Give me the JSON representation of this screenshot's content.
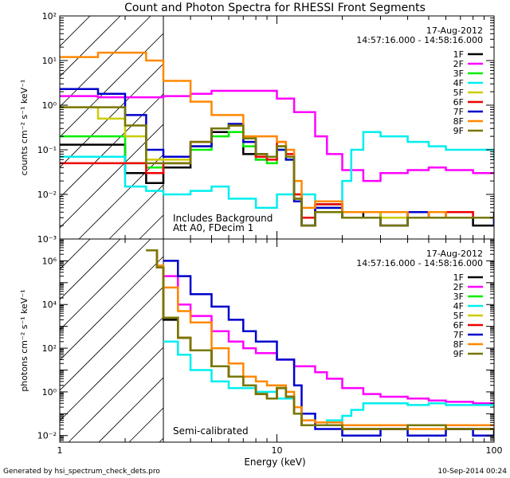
{
  "chart_data": [
    {
      "type": "line",
      "title": "Count and Photon Spectra for RHESSI Front Segments",
      "xlabel": "",
      "ylabel": "counts cm⁻² s⁻¹ keV⁻¹",
      "xscale": "log",
      "yscale": "log",
      "xlim": [
        1,
        100
      ],
      "ylim": [
        0.001,
        100
      ],
      "yticks": [
        "10⁻³",
        "10⁻²",
        "10⁻¹",
        "10⁰",
        "10¹",
        "10²"
      ],
      "date_label": "17-Aug-2012",
      "time_range": "14:57:16.000 - 14:58:16.000",
      "annotations": [
        "Includes Background",
        "Att A0, FDecim 1"
      ],
      "shaded_region": [
        1,
        3
      ],
      "vline": 3,
      "legend_position": "top-right",
      "series": [
        {
          "name": "1F",
          "color": "#000000",
          "x": [
            1,
            1.5,
            2,
            2.5,
            3,
            4,
            5,
            6,
            7,
            8,
            9,
            10,
            11,
            12,
            13,
            15,
            20,
            25,
            30,
            40,
            50,
            60,
            80,
            100
          ],
          "y": [
            0.13,
            0.13,
            0.03,
            0.018,
            0.04,
            0.12,
            0.25,
            0.25,
            0.08,
            0.06,
            0.07,
            0.12,
            0.06,
            0.008,
            0.002,
            0.006,
            0.003,
            0.004,
            0.002,
            0.003,
            0.003,
            0.003,
            0.002,
            0.004
          ]
        },
        {
          "name": "2F",
          "color": "#ff00ff",
          "x": [
            1,
            1.5,
            2,
            3,
            4,
            5,
            7,
            10,
            12,
            15,
            17,
            20,
            25,
            30,
            40,
            50,
            60,
            80,
            100
          ],
          "y": [
            1.6,
            1.5,
            1.5,
            1.6,
            1.8,
            2.1,
            2.1,
            1.4,
            0.7,
            0.2,
            0.08,
            0.035,
            0.02,
            0.03,
            0.035,
            0.04,
            0.035,
            0.03,
            0.03
          ]
        },
        {
          "name": "3F",
          "color": "#00ee00",
          "x": [
            1,
            1.5,
            2,
            2.5,
            3,
            4,
            5,
            6,
            7,
            8,
            9,
            10,
            11,
            12,
            13,
            15,
            20,
            30,
            40,
            50,
            60,
            80,
            100
          ],
          "y": [
            0.2,
            0.2,
            0.05,
            0.04,
            0.05,
            0.1,
            0.2,
            0.25,
            0.12,
            0.06,
            0.05,
            0.1,
            0.06,
            0.008,
            0.003,
            0.005,
            0.004,
            0.004,
            0.003,
            0.004,
            0.003,
            0.003,
            0.003
          ]
        },
        {
          "name": "4F",
          "color": "#00eeee",
          "x": [
            1,
            1.5,
            2,
            2.5,
            3,
            4,
            5,
            6,
            8,
            10,
            15,
            20,
            22,
            25,
            30,
            40,
            50,
            60,
            80,
            100
          ],
          "y": [
            0.07,
            0.07,
            0.015,
            0.012,
            0.01,
            0.012,
            0.015,
            0.008,
            0.005,
            0.01,
            0.006,
            0.02,
            0.1,
            0.25,
            0.2,
            0.15,
            0.12,
            0.1,
            0.1,
            0.06
          ]
        },
        {
          "name": "5F",
          "color": "#cccc00",
          "x": [
            1,
            1.5,
            2,
            2.5,
            3,
            4,
            5,
            6,
            7,
            8,
            9,
            10,
            11,
            12,
            13,
            15,
            20,
            30,
            40,
            50,
            60,
            80,
            100
          ],
          "y": [
            0.9,
            0.5,
            0.2,
            0.06,
            0.06,
            0.15,
            0.3,
            0.35,
            0.2,
            0.08,
            0.07,
            0.12,
            0.07,
            0.01,
            0.003,
            0.005,
            0.004,
            0.003,
            0.003,
            0.004,
            0.003,
            0.003,
            0.003
          ]
        },
        {
          "name": "6F",
          "color": "#ee0000",
          "x": [
            1,
            1.5,
            2,
            2.5,
            3,
            4,
            5,
            6,
            7,
            8,
            9,
            10,
            11,
            12,
            13,
            15,
            20,
            30,
            40,
            50,
            60,
            80,
            100
          ],
          "y": [
            0.05,
            0.05,
            0.05,
            0.03,
            0.05,
            0.15,
            0.3,
            0.35,
            0.15,
            0.07,
            0.06,
            0.15,
            0.08,
            0.01,
            0.003,
            0.006,
            0.004,
            0.004,
            0.003,
            0.003,
            0.004,
            0.003,
            0.003
          ]
        },
        {
          "name": "7F",
          "color": "#0000cc",
          "x": [
            1,
            1.5,
            2,
            2.5,
            3,
            4,
            5,
            6,
            7,
            8,
            9,
            10,
            11,
            12,
            13,
            15,
            20,
            30,
            40,
            50,
            60,
            80,
            100
          ],
          "y": [
            2.3,
            1.8,
            0.6,
            0.1,
            0.07,
            0.12,
            0.3,
            0.38,
            0.15,
            0.08,
            0.07,
            0.1,
            0.06,
            0.007,
            0.002,
            0.005,
            0.003,
            0.002,
            0.004,
            0.003,
            0.003,
            0.003,
            0.002
          ]
        },
        {
          "name": "8F",
          "color": "#ff8800",
          "x": [
            1,
            1.5,
            2,
            2.5,
            3,
            4,
            5,
            7,
            10,
            11,
            12,
            13,
            15,
            20,
            30,
            40,
            50,
            60,
            80,
            100
          ],
          "y": [
            12,
            15,
            15,
            10,
            3.5,
            1.2,
            0.6,
            0.2,
            0.15,
            0.1,
            0.02,
            0.005,
            0.007,
            0.004,
            0.004,
            0.003,
            0.004,
            0.003,
            0.003,
            0.003
          ]
        },
        {
          "name": "9F",
          "color": "#777700",
          "x": [
            1,
            1.5,
            2,
            2.5,
            3,
            4,
            5,
            6,
            7,
            8,
            9,
            10,
            11,
            12,
            13,
            15,
            20,
            30,
            40,
            50,
            60,
            80,
            100
          ],
          "y": [
            0.9,
            0.9,
            0.35,
            0.05,
            0.05,
            0.15,
            0.3,
            0.35,
            0.18,
            0.08,
            0.07,
            0.12,
            0.07,
            0.008,
            0.002,
            0.004,
            0.003,
            0.002,
            0.003,
            0.003,
            0.003,
            0.003,
            0.003
          ]
        }
      ]
    },
    {
      "type": "line",
      "title": "",
      "xlabel": "Energy (keV)",
      "ylabel": "photons cm⁻² s⁻¹ keV⁻¹",
      "xscale": "log",
      "yscale": "log",
      "xlim": [
        1,
        100
      ],
      "ylim": [
        0.005,
        10000000
      ],
      "xticks": [
        1,
        10,
        100
      ],
      "yticks": [
        "10⁻²",
        "10⁰",
        "10²",
        "10⁴",
        "10⁶"
      ],
      "date_label": "17-Aug-2012",
      "time_range": "14:57:16.000 - 14:58:16.000",
      "annotations": [
        "Semi-calibrated"
      ],
      "shaded_region": [
        1,
        3
      ],
      "vline": 3,
      "legend_position": "top-right",
      "series": [
        {
          "name": "1F",
          "color": "#000000",
          "x": [
            2.5,
            2.8,
            3,
            3.5,
            4,
            5,
            6,
            7,
            8,
            9,
            10,
            11,
            12,
            13,
            15,
            20,
            30,
            40,
            60,
            80,
            100
          ],
          "y": [
            3000000,
            500000,
            2000,
            300,
            80,
            15,
            5,
            2,
            0.8,
            0.5,
            1.5,
            0.6,
            0.1,
            0.03,
            0.03,
            0.02,
            0.02,
            0.03,
            0.02,
            0.02,
            0.01
          ]
        },
        {
          "name": "2F",
          "color": "#ff00ff",
          "x": [
            3,
            3.5,
            4,
            5,
            6,
            7,
            8,
            10,
            12,
            15,
            17,
            20,
            25,
            30,
            40,
            50,
            60,
            80,
            100
          ],
          "y": [
            200000,
            10000,
            3000,
            600,
            200,
            100,
            60,
            30,
            15,
            8,
            4,
            1.5,
            0.8,
            0.6,
            0.5,
            0.4,
            0.35,
            0.3,
            0.3
          ]
        },
        {
          "name": "3F",
          "color": "#00ee00",
          "x": [
            2.5,
            2.8,
            3,
            3.5,
            4,
            5,
            6,
            7,
            8,
            9,
            10,
            11,
            12,
            13,
            15,
            20,
            30,
            40,
            60,
            80,
            100
          ],
          "y": [
            3000000,
            500000,
            2500,
            300,
            80,
            15,
            5,
            2,
            0.8,
            0.5,
            1.5,
            0.6,
            0.1,
            0.03,
            0.03,
            0.02,
            0.02,
            0.03,
            0.02,
            0.02,
            0.02
          ]
        },
        {
          "name": "4F",
          "color": "#00eeee",
          "x": [
            3,
            3.5,
            4,
            5,
            6,
            8,
            10,
            12,
            15,
            17,
            20,
            22,
            25,
            30,
            40,
            50,
            60,
            80,
            100
          ],
          "y": [
            200,
            50,
            10,
            3,
            1.5,
            1,
            0.5,
            0.1,
            0.03,
            0.05,
            0.08,
            0.15,
            0.3,
            0.3,
            0.25,
            0.3,
            0.25,
            0.25,
            0.2
          ]
        },
        {
          "name": "5F",
          "color": "#cccc00",
          "x": [
            2.5,
            2.8,
            3,
            3.5,
            4,
            5,
            6,
            7,
            8,
            9,
            10,
            11,
            12,
            13,
            15,
            20,
            30,
            40,
            60,
            80,
            100
          ],
          "y": [
            3000000,
            500000,
            2500,
            300,
            80,
            15,
            5,
            2,
            0.8,
            0.5,
            1.5,
            0.6,
            0.1,
            0.03,
            0.03,
            0.02,
            0.02,
            0.03,
            0.02,
            0.02,
            0.02
          ]
        },
        {
          "name": "6F",
          "color": "#ee0000",
          "x": [
            2.5,
            2.8,
            3,
            3.5,
            4,
            5,
            6,
            7,
            8,
            9,
            10,
            11,
            12,
            13,
            15,
            20,
            30,
            40,
            60,
            80,
            100
          ],
          "y": [
            3000000,
            500000,
            2500,
            300,
            80,
            15,
            5,
            2,
            0.8,
            0.5,
            1.5,
            0.6,
            0.1,
            0.03,
            0.03,
            0.02,
            0.02,
            0.03,
            0.02,
            0.02,
            0.02
          ]
        },
        {
          "name": "7F",
          "color": "#0000cc",
          "x": [
            3,
            3.5,
            4,
            5,
            6,
            7,
            8,
            10,
            12,
            13,
            15,
            20,
            30,
            40,
            60,
            80,
            100
          ],
          "y": [
            1000000,
            200000,
            30000,
            8000,
            2000,
            600,
            200,
            30,
            2,
            0.1,
            0.02,
            0.01,
            0.02,
            0.01,
            0.02,
            0.01,
            0.01
          ]
        },
        {
          "name": "8F",
          "color": "#ff8800",
          "x": [
            2.5,
            2.8,
            3,
            3.5,
            4,
            5,
            6,
            7,
            8,
            9,
            10,
            11,
            12,
            13,
            15,
            20,
            30,
            40,
            60,
            80,
            100
          ],
          "y": [
            3000000,
            600000,
            60000,
            5000,
            1500,
            100,
            20,
            5,
            3,
            2,
            2,
            1,
            0.2,
            0.05,
            0.04,
            0.03,
            0.03,
            0.02,
            0.03,
            0.03,
            0.03
          ]
        },
        {
          "name": "9F",
          "color": "#777700",
          "x": [
            2.5,
            2.8,
            3,
            3.5,
            4,
            5,
            6,
            7,
            8,
            9,
            10,
            11,
            12,
            13,
            15,
            20,
            30,
            40,
            60,
            80,
            100
          ],
          "y": [
            3000000,
            500000,
            2500,
            300,
            80,
            15,
            5,
            2,
            0.8,
            0.5,
            1.5,
            0.6,
            0.1,
            0.03,
            0.03,
            0.02,
            0.02,
            0.03,
            0.02,
            0.02,
            0.02
          ]
        }
      ]
    }
  ],
  "footer": {
    "left": "Generated by hsi_spectrum_check_dets.pro",
    "right": "10-Sep-2014 00:24"
  }
}
